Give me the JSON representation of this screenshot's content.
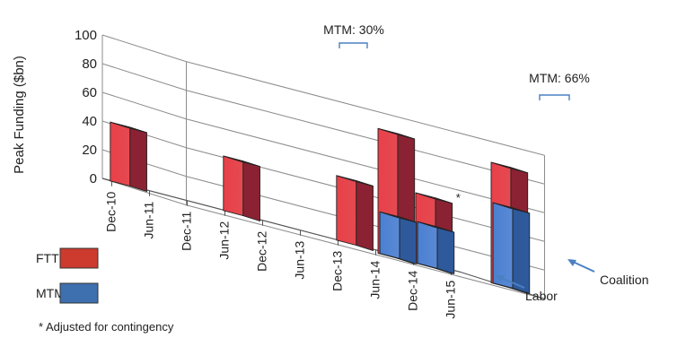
{
  "chart_data": {
    "type": "bar",
    "ylabel": "Peak Funding ($bn)",
    "ylim": [
      0,
      100
    ],
    "y_ticks": [
      0,
      20,
      40,
      60,
      80,
      100
    ],
    "categories": [
      "Dec-10",
      "Jun-11",
      "Dec-11",
      "Jun-12",
      "Dec-12",
      "Jun-13",
      "Dec-13",
      "Jun-14",
      "Dec-14",
      "Jun-15"
    ],
    "series_labels": [
      "Labor",
      "Coalition"
    ],
    "legend": {
      "placement": "bottom-left",
      "items": [
        {
          "name": "FTTP",
          "color": "#cc3b2e"
        },
        {
          "name": "MTM",
          "color": "#3e6fae"
        }
      ]
    },
    "bars": [
      {
        "date": "Dec-10",
        "series": "Labor",
        "type": "FTTP",
        "value": 41
      },
      {
        "date": "Jun-12",
        "series": "Labor",
        "type": "FTTP",
        "value": 38
      },
      {
        "date": "Dec-13",
        "series": "Labor",
        "type": "FTTP",
        "value": 45
      },
      {
        "date": "Dec-13",
        "series": "Coalition",
        "type": "FTTP",
        "value": 87
      },
      {
        "date": "Dec-13",
        "series": "Coalition",
        "type": "MTM",
        "value": 29
      },
      {
        "date": "Jun-14",
        "series": "Coalition",
        "type": "FTTP",
        "value": 49,
        "marker": "*"
      },
      {
        "date": "Jun-14",
        "series": "Coalition",
        "type": "MTM",
        "value": 29
      },
      {
        "date": "Jun-15",
        "series": "Coalition",
        "type": "FTTP",
        "value": 84
      },
      {
        "date": "Jun-15",
        "series": "Coalition",
        "type": "MTM",
        "value": 56
      }
    ],
    "annotations": [
      "MTM: 30%",
      "MTM: 66%"
    ],
    "footnote": "* Adjusted for contingency",
    "colors": {
      "fttp": "#cc3b2e",
      "mtm": "#3e6fae",
      "grid": "#8c8c8c",
      "arrow": "#4a80c2"
    }
  }
}
